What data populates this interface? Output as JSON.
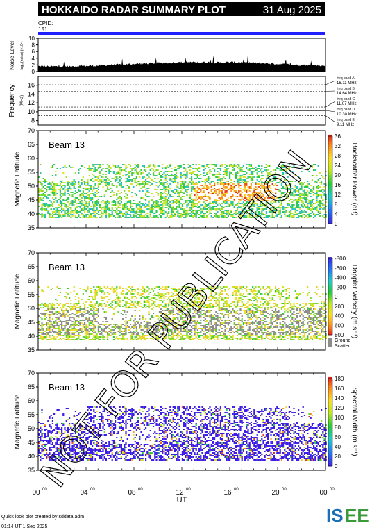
{
  "header": {
    "title": "HOKKAIDO RADAR SUMMARY PLOT",
    "date": "31 Aug 2025",
    "cpid_label": "CPID:",
    "cpid_value": "151"
  },
  "colors": {
    "title_bg": "#000000",
    "title_fg": "#ffffff",
    "cpid_bar": "#2020ff",
    "ground_scatter": "#8c8c8c",
    "watermark": "#000000"
  },
  "watermark": "NOT FOR PUBLICATION",
  "noise_panel": {
    "ylabel": "Noise Level",
    "ylabel_units": "log₁₀(noise) (×10⁵)",
    "ticks": [
      "0",
      "2",
      "4",
      "6",
      "8",
      "10"
    ]
  },
  "freq_panel": {
    "ylabel": "Frequency",
    "ylabel_units": "(MHz)",
    "ticks": [
      "8",
      "10",
      "12",
      "14",
      "16"
    ],
    "bands": [
      {
        "label": "freq band A",
        "value": "16.11 MHz"
      },
      {
        "label": "freq band B",
        "value": "14.64 MHz"
      },
      {
        "label": "freq band C",
        "value": "11.07 MHz"
      },
      {
        "label": "freq band D",
        "value": "10.30 MHz"
      },
      {
        "label": "freq band E",
        "value": "9.11 MHz"
      }
    ]
  },
  "panels": [
    {
      "beam_label": "Beam 13",
      "ylabel": "Magnetic Latitude",
      "yticks": [
        "35",
        "40",
        "45",
        "50",
        "55",
        "60",
        "65",
        "70"
      ],
      "colorbar_title": "Backscatter Power (dB)",
      "colorbar_ticks": [
        "0",
        "4",
        "8",
        "12",
        "16",
        "20",
        "24",
        "28",
        "32",
        "36"
      ]
    },
    {
      "beam_label": "Beam 13",
      "ylabel": "Magnetic Latitude",
      "yticks": [
        "35",
        "40",
        "45",
        "50",
        "55",
        "60",
        "65",
        "70"
      ],
      "colorbar_title": "Doppler Velocity (m s⁻¹)",
      "colorbar_ticks": [
        "800",
        "600",
        "400",
        "200",
        "0",
        "-200",
        "-400",
        "-600",
        "-800"
      ],
      "ground_label_1": "Ground",
      "ground_label_2": "Scatter"
    },
    {
      "beam_label": "Beam 13",
      "ylabel": "Magnetic Latitude",
      "yticks": [
        "35",
        "40",
        "45",
        "50",
        "55",
        "60",
        "65",
        "70"
      ],
      "colorbar_title": "Spectral Width (m s⁻¹)",
      "colorbar_ticks": [
        "0",
        "20",
        "40",
        "60",
        "80",
        "100",
        "120",
        "140",
        "160",
        "180"
      ]
    }
  ],
  "xaxis": {
    "label": "UT",
    "ticks": [
      "00",
      "04",
      "08",
      "12",
      "16",
      "20",
      "00"
    ],
    "tick_sup": "00"
  },
  "footer": {
    "credit": "Quick look plot created by sddata.adm",
    "timestamp": "01:14 UT   1 Sep 2025",
    "logo_text": "ISEE"
  },
  "chart_data": {
    "type": "heatmap",
    "title": "HOKKAIDO RADAR SUMMARY PLOT",
    "date": "31 Aug 2025",
    "x_range_hours": [
      0,
      24
    ],
    "y_range_mlat": [
      35,
      70
    ],
    "noise_range": [
      0,
      10
    ],
    "freq_range_mhz": [
      7,
      18
    ],
    "freq_bands_mhz": [
      16.11,
      14.64,
      11.07,
      10.3,
      9.11
    ],
    "power_range_db": [
      0,
      38
    ],
    "velocity_range": [
      -900,
      900
    ],
    "width_range": [
      0,
      190
    ],
    "noise_profile": [
      [
        0,
        1.6
      ],
      [
        1,
        1.6
      ],
      [
        2,
        1.5
      ],
      [
        3,
        1.6
      ],
      [
        4,
        1.7
      ],
      [
        5,
        1.8
      ],
      [
        6,
        2.0
      ],
      [
        7,
        2.1
      ],
      [
        8,
        2.3
      ],
      [
        9,
        2.4
      ],
      [
        10,
        2.6
      ],
      [
        11,
        2.7
      ],
      [
        12,
        2.8
      ],
      [
        13,
        2.8
      ],
      [
        14,
        2.8
      ],
      [
        15,
        2.7
      ],
      [
        16,
        2.8
      ],
      [
        17,
        2.8
      ],
      [
        18,
        2.6
      ],
      [
        19,
        2.5
      ],
      [
        20,
        2.3
      ],
      [
        21,
        2.1
      ],
      [
        22,
        2.0
      ],
      [
        23,
        1.9
      ],
      [
        24,
        1.8
      ]
    ],
    "freq_trace_mhz": 10.3
  }
}
